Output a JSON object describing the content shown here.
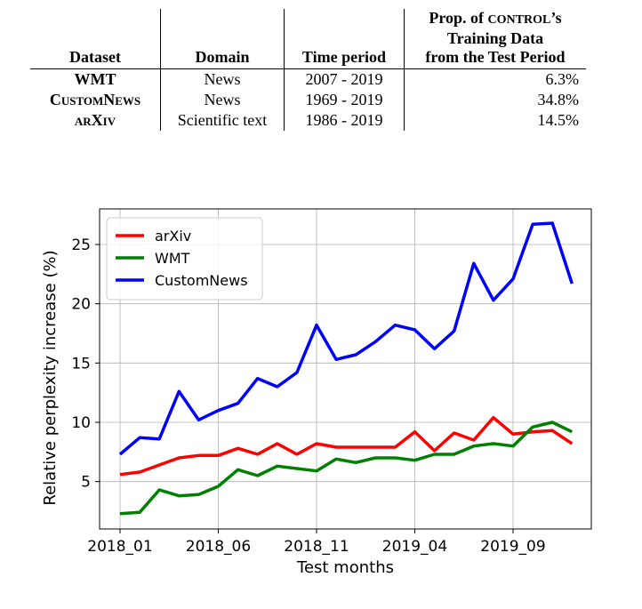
{
  "table": {
    "headers": {
      "dataset": "Dataset",
      "domain": "Domain",
      "time_period": "Time period",
      "prop_line1_prefix": "Prop. of ",
      "prop_line1_model": "CONTROL",
      "prop_line1_suffix": "’s",
      "prop_line2": "Training Data",
      "prop_line3": "from the Test Period"
    },
    "rows": [
      {
        "dataset": "WMT",
        "domain": "News",
        "time_period": "2007 - 2019",
        "prop": "6.3%"
      },
      {
        "dataset": "CustomNews",
        "domain": "News",
        "time_period": "1969 - 2019",
        "prop": "34.8%"
      },
      {
        "dataset": "arXiv",
        "domain": "Scientific text",
        "time_period": "1986 - 2019",
        "prop": "14.5%"
      }
    ]
  },
  "chart_data": {
    "type": "line",
    "xlabel": "Test months",
    "ylabel": "Relative perplexity increase (%)",
    "x_ticks": [
      "2018_01",
      "2018_06",
      "2018_11",
      "2019_04",
      "2019_09"
    ],
    "x_tick_index": [
      0,
      5,
      10,
      15,
      20
    ],
    "ylim": [
      1,
      28
    ],
    "y_ticks": [
      5,
      10,
      15,
      20,
      25
    ],
    "grid": true,
    "legend": "top-left",
    "series": [
      {
        "name": "arXiv",
        "color": "#ff0000",
        "values": [
          5.6,
          5.8,
          6.4,
          7.0,
          7.2,
          7.2,
          7.8,
          7.3,
          8.2,
          7.3,
          8.2,
          7.9,
          7.9,
          7.9,
          7.9,
          9.2,
          7.6,
          9.1,
          8.5,
          10.4,
          9.0,
          9.2,
          9.3,
          8.2
        ]
      },
      {
        "name": "WMT",
        "color": "#008000",
        "values": [
          2.3,
          2.4,
          4.3,
          3.8,
          3.9,
          4.6,
          6.0,
          5.5,
          6.3,
          6.1,
          5.9,
          6.9,
          6.6,
          7.0,
          7.0,
          6.8,
          7.3,
          7.3,
          8.0,
          8.2,
          8.0,
          9.6,
          10.0,
          9.2
        ]
      },
      {
        "name": "CustomNews",
        "color": "#0000ff",
        "values": [
          7.3,
          8.7,
          8.6,
          12.6,
          10.2,
          11.0,
          11.6,
          13.7,
          13.0,
          14.2,
          18.2,
          15.3,
          15.7,
          16.8,
          18.2,
          17.8,
          16.2,
          17.7,
          23.4,
          20.3,
          22.1,
          26.7,
          26.8,
          21.7
        ]
      }
    ]
  }
}
